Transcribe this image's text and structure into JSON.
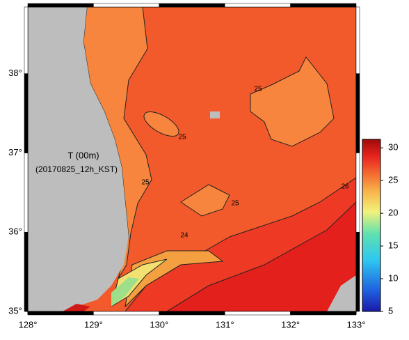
{
  "map": {
    "annotation": [
      "T (00m)",
      "(20170825_12h_KST)"
    ],
    "xlim": [
      128,
      133
    ],
    "ylim": [
      35,
      38.84
    ],
    "xticks": [
      {
        "value": 128,
        "label": "128°"
      },
      {
        "value": 129,
        "label": "129°"
      },
      {
        "value": 130,
        "label": "130°"
      },
      {
        "value": 131,
        "label": "131°"
      },
      {
        "value": 132,
        "label": "132°"
      },
      {
        "value": 133,
        "label": "133°"
      }
    ],
    "yticks": [
      {
        "value": 35,
        "label": "35°"
      },
      {
        "value": 36,
        "label": "36°"
      },
      {
        "value": 37,
        "label": "37°"
      },
      {
        "value": 38,
        "label": "38°"
      }
    ],
    "contour_labels": [
      25,
      25,
      25,
      25,
      24,
      26
    ],
    "colorbar": {
      "lim": [
        5,
        31.3
      ],
      "ticks": [
        5,
        10,
        15,
        20,
        25,
        30
      ]
    }
  }
}
